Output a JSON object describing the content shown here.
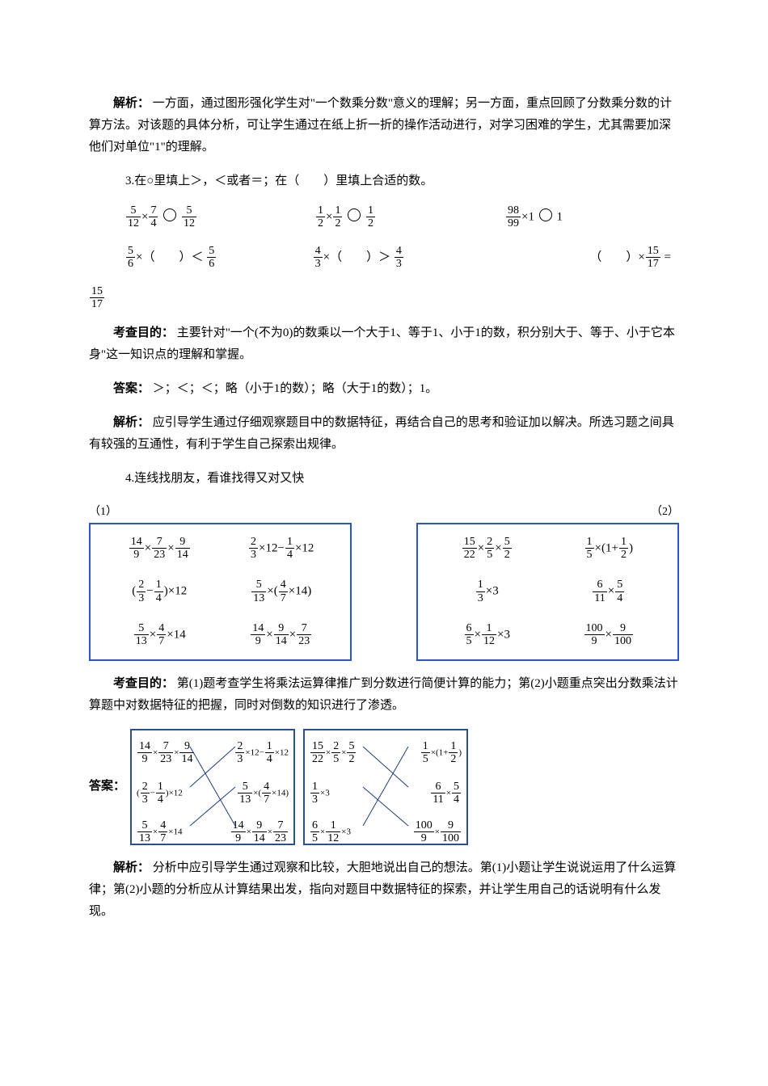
{
  "p1": {
    "label": "解析：",
    "text": "一方面，通过图形强化学生对\"一个数乘分数\"意义的理解；另一方面，重点回顾了分数乘分数的计算方法。对该题的具体分析，可让学生通过在纸上折一折的操作活动进行，对学习困难的学生，尤其需要加深他们对单位\"1\"的理解。"
  },
  "q3": {
    "stem": "3.在○里填上＞，＜或者＝；在（　　）里填上合适的数。",
    "r1c1": {
      "a_n": "5",
      "a_d": "12",
      "b_n": "7",
      "b_d": "4",
      "c_n": "5",
      "c_d": "12"
    },
    "r1c2": {
      "a_n": "1",
      "a_d": "2",
      "b_n": "1",
      "b_d": "2",
      "c_n": "1",
      "c_d": "2"
    },
    "r1c3": {
      "a_n": "98",
      "a_d": "99",
      "b": "1",
      "c": "1"
    },
    "r2c1": {
      "a_n": "5",
      "a_d": "6",
      "c_n": "5",
      "c_d": "6",
      "op": "＜"
    },
    "r2c2": {
      "a_n": "4",
      "a_d": "3",
      "c_n": "4",
      "c_d": "3",
      "op": "＞"
    },
    "r2c3": {
      "b_n": "15",
      "b_d": "17",
      "eq": "="
    },
    "trail_n": "15",
    "trail_d": "17"
  },
  "q3_purpose": {
    "label": "考查目的：",
    "text": "主要针对\"一个(不为0)的数乘以一个大于1、等于1、小于1的数，积分别大于、等于、小于它本身\"这一知识点的理解和掌握。"
  },
  "q3_ans": {
    "label": "答案：",
    "text": "＞；＜；＜；略（小于1的数）；略（大于1的数）；1。"
  },
  "q3_expl": {
    "label": "解析：",
    "text": "应引导学生通过仔细观察题目中的数据特征，再结合自己的思考和验证加以解决。所选习题之间具有较强的互通性，有利于学生自己探索出规律。"
  },
  "q4": {
    "stem": "4.连线找朋友，看谁找得又对又快",
    "left_label": "（1）",
    "right_label": "（2）",
    "box1": {
      "colA": [
        {
          "type": "triple",
          "a": "14",
          "b": "9",
          "c": "7",
          "d": "23",
          "e": "9",
          "f": "14"
        },
        {
          "type": "paren_diff",
          "a": "2",
          "b": "3",
          "c": "1",
          "d": "4",
          "m": "12"
        },
        {
          "type": "two_then",
          "a": "5",
          "b": "13",
          "c": "4",
          "d": "7",
          "m": "14"
        }
      ],
      "colB": [
        {
          "type": "diff12",
          "a": "2",
          "b": "3",
          "c": "1",
          "d": "4",
          "m": "12"
        },
        {
          "type": "paren_mul",
          "a": "5",
          "b": "13",
          "c": "4",
          "d": "7",
          "m": "14"
        },
        {
          "type": "triple",
          "a": "14",
          "b": "9",
          "c": "9",
          "d": "14",
          "e": "7",
          "f": "23"
        }
      ]
    },
    "box2": {
      "colA": [
        {
          "type": "triple",
          "a": "15",
          "b": "22",
          "c": "2",
          "d": "5",
          "e": "5",
          "f": "2"
        },
        {
          "type": "int_mul",
          "a": "1",
          "b": "3",
          "m": "3"
        },
        {
          "type": "two_int",
          "a": "6",
          "b": "5",
          "c": "1",
          "d": "12",
          "m": "3"
        }
      ],
      "colB": [
        {
          "type": "paren_add",
          "a": "1",
          "b": "5",
          "c": "1",
          "d": "2"
        },
        {
          "type": "two",
          "a": "6",
          "b": "11",
          "c": "5",
          "d": "4"
        },
        {
          "type": "two",
          "a": "100",
          "b": "9",
          "c": "9",
          "d": "100"
        }
      ]
    }
  },
  "q4_purpose": {
    "label": "考查目的：",
    "text": "第(1)题考查学生将乘法运算律推广到分数进行简便计算的能力；第(2)小题重点突出分数乘法计算题中对数据特征的把握，同时对倒数的知识进行了渗透。"
  },
  "q4_ans_label": "答案：",
  "q4_expl": {
    "label": "解析：",
    "text": "分析中应引导学生通过观察和比较，大胆地说出自己的想法。第(1)小题让学生说说运用了什么运算律；第(2)小题的分析应从计算结果出发，指向对题目中数据特征的探索，并让学生用自己的话说明有什么发现。"
  },
  "colors": {
    "border": "#2a54c8",
    "answer_border": "#285090",
    "line": "#1d3e7a"
  }
}
